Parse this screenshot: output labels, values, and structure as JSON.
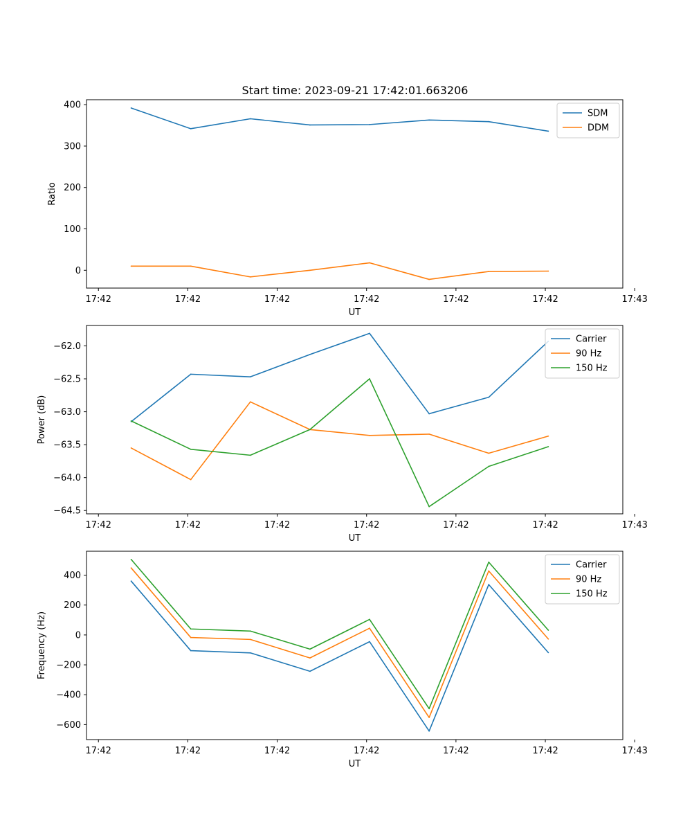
{
  "figure_title": "Start time: 2023-09-21 17:42:01.663206",
  "colors": {
    "blue": "#1f77b4",
    "orange": "#ff7f0e",
    "green": "#2ca02c"
  },
  "chart_data": [
    {
      "type": "line",
      "title": "Start time: 2023-09-21 17:42:01.663206",
      "xlabel": "UT",
      "ylabel": "Ratio",
      "x": [
        1,
        2,
        3,
        4,
        5,
        6,
        7,
        8
      ],
      "xlim": [
        0.25,
        9.25
      ],
      "x_ticks": [
        0.45,
        1.95,
        3.45,
        4.95,
        6.45,
        7.95,
        9.45
      ],
      "x_tick_labels": [
        "17:42",
        "17:42",
        "17:42",
        "17:42",
        "17:42",
        "17:42",
        "17:43"
      ],
      "ylim": [
        -43,
        412
      ],
      "y_ticks": [
        0,
        100,
        200,
        300,
        400
      ],
      "y_tick_labels": [
        "0",
        "100",
        "200",
        "300",
        "400"
      ],
      "legend": "top-right",
      "series": [
        {
          "name": "SDM",
          "color": "#1f77b4",
          "values": [
            392,
            342,
            366,
            351,
            352,
            363,
            359,
            336
          ]
        },
        {
          "name": "DDM",
          "color": "#ff7f0e",
          "values": [
            10,
            10,
            -16,
            0,
            18,
            -22,
            -3,
            -2
          ]
        }
      ]
    },
    {
      "type": "line",
      "title": "",
      "xlabel": "UT",
      "ylabel": "Power (dB)",
      "x": [
        1,
        2,
        3,
        4,
        5,
        6,
        7,
        8
      ],
      "xlim": [
        0.25,
        9.25
      ],
      "x_ticks": [
        0.45,
        1.95,
        3.45,
        4.95,
        6.45,
        7.95,
        9.45
      ],
      "x_tick_labels": [
        "17:42",
        "17:42",
        "17:42",
        "17:42",
        "17:42",
        "17:42",
        "17:43"
      ],
      "ylim": [
        -64.55,
        -61.69
      ],
      "y_ticks": [
        -64.5,
        -64.0,
        -63.5,
        -63.0,
        -62.5,
        -62.0
      ],
      "y_tick_labels": [
        "−64.5",
        "−64.0",
        "−63.5",
        "−63.0",
        "−62.5",
        "−62.0"
      ],
      "legend": "top-right",
      "series": [
        {
          "name": "Carrier",
          "color": "#1f77b4",
          "values": [
            -63.15,
            -62.43,
            -62.47,
            -62.13,
            -61.81,
            -63.03,
            -62.78,
            -61.93
          ]
        },
        {
          "name": "90 Hz",
          "color": "#ff7f0e",
          "values": [
            -63.55,
            -64.03,
            -62.85,
            -63.27,
            -63.36,
            -63.34,
            -63.63,
            -63.37
          ]
        },
        {
          "name": "150 Hz",
          "color": "#2ca02c",
          "values": [
            -63.14,
            -63.57,
            -63.66,
            -63.27,
            -62.5,
            -64.44,
            -63.83,
            -63.53
          ]
        }
      ]
    },
    {
      "type": "line",
      "title": "",
      "xlabel": "UT",
      "ylabel": "Frequency (Hz)",
      "x": [
        1,
        2,
        3,
        4,
        5,
        6,
        7,
        8
      ],
      "xlim": [
        0.25,
        9.25
      ],
      "x_ticks": [
        0.45,
        1.95,
        3.45,
        4.95,
        6.45,
        7.95,
        9.45
      ],
      "x_tick_labels": [
        "17:42",
        "17:42",
        "17:42",
        "17:42",
        "17:42",
        "17:42",
        "17:43"
      ],
      "ylim": [
        -700,
        560
      ],
      "y_ticks": [
        -600,
        -400,
        -200,
        0,
        200,
        400
      ],
      "y_tick_labels": [
        "−600",
        "−400",
        "−200",
        "0",
        "200",
        "400"
      ],
      "legend": "top-right",
      "series": [
        {
          "name": "Carrier",
          "color": "#1f77b4",
          "values": [
            360,
            -105,
            -120,
            -243,
            -45,
            -643,
            337,
            -118
          ]
        },
        {
          "name": "90 Hz",
          "color": "#ff7f0e",
          "values": [
            448,
            -17,
            -30,
            -154,
            45,
            -552,
            428,
            -27
          ]
        },
        {
          "name": "150 Hz",
          "color": "#2ca02c",
          "values": [
            505,
            40,
            26,
            -95,
            104,
            -493,
            487,
            32
          ]
        }
      ]
    }
  ]
}
